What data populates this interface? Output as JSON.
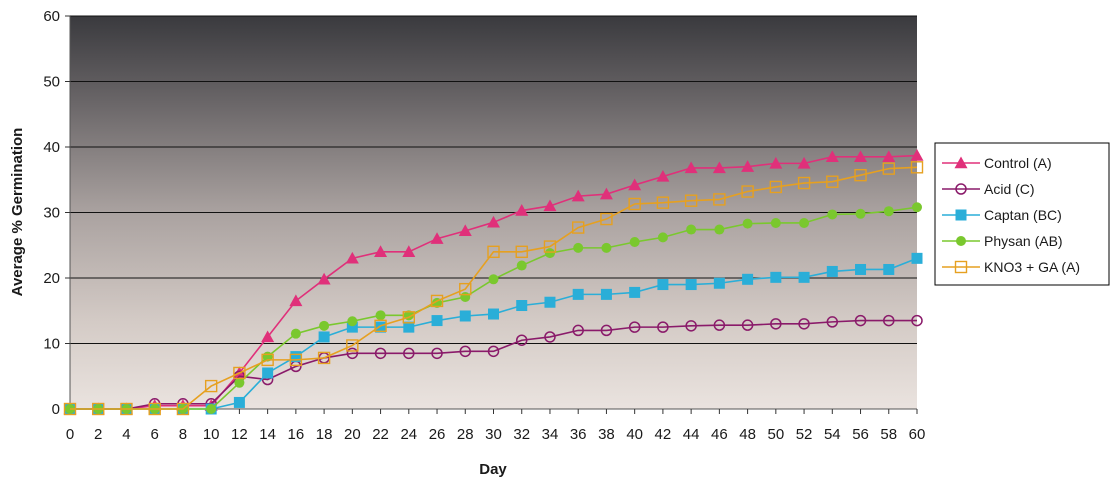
{
  "chart_data": {
    "type": "line",
    "title": "",
    "xlabel": "Day",
    "ylabel": "Average % Germination",
    "xlim": [
      0,
      60
    ],
    "ylim": [
      0,
      60
    ],
    "x_ticks": [
      0,
      2,
      4,
      6,
      8,
      10,
      12,
      14,
      16,
      18,
      20,
      22,
      24,
      26,
      28,
      30,
      32,
      34,
      36,
      38,
      40,
      42,
      44,
      46,
      48,
      50,
      52,
      54,
      56,
      58,
      60
    ],
    "y_ticks": [
      0,
      10,
      20,
      30,
      40,
      50,
      60
    ],
    "grid": "horizontal",
    "legend_position": "right",
    "x": [
      0,
      2,
      4,
      6,
      8,
      10,
      12,
      14,
      16,
      18,
      20,
      22,
      24,
      26,
      28,
      30,
      32,
      34,
      36,
      38,
      40,
      42,
      44,
      46,
      48,
      50,
      52,
      54,
      56,
      58,
      60
    ],
    "series": [
      {
        "name": "Control (A)",
        "color": "#e0307a",
        "marker": "triangle",
        "values": [
          0,
          0,
          0,
          0.5,
          0.5,
          0.5,
          5.5,
          11,
          16.5,
          19.8,
          23,
          24,
          24,
          26,
          27.2,
          28.5,
          30.3,
          31,
          32.5,
          32.8,
          34.2,
          35.5,
          36.8,
          36.8,
          37,
          37.5,
          37.5,
          38.5,
          38.5,
          38.5,
          38.7
        ]
      },
      {
        "name": "Acid (C)",
        "color": "#8a1a6a",
        "marker": "circle-open",
        "values": [
          0,
          0,
          0,
          0.8,
          0.8,
          0.8,
          5,
          4.5,
          6.5,
          7.8,
          8.5,
          8.5,
          8.5,
          8.5,
          8.8,
          8.8,
          10.5,
          11,
          12,
          12,
          12.5,
          12.5,
          12.7,
          12.8,
          12.8,
          13,
          13,
          13.3,
          13.5,
          13.5,
          13.5
        ]
      },
      {
        "name": "Captan (BC)",
        "color": "#2aaed8",
        "marker": "square",
        "values": [
          0,
          0,
          0,
          0,
          0,
          0,
          1,
          5.5,
          8,
          11,
          12.5,
          12.5,
          12.5,
          13.5,
          14.2,
          14.5,
          15.8,
          16.3,
          17.5,
          17.5,
          17.8,
          19,
          19,
          19.2,
          19.8,
          20.1,
          20.1,
          21,
          21.3,
          21.3,
          23
        ]
      },
      {
        "name": "Physan (AB)",
        "color": "#7ac82e",
        "marker": "circle-filled",
        "values": [
          0,
          0,
          0,
          0,
          0,
          0,
          4,
          8,
          11.5,
          12.7,
          13.4,
          14.3,
          14.3,
          16.2,
          17.1,
          19.8,
          21.9,
          23.8,
          24.6,
          24.6,
          25.5,
          26.2,
          27.4,
          27.4,
          28.3,
          28.4,
          28.4,
          29.7,
          29.8,
          30.2,
          30.8
        ]
      },
      {
        "name": "KNO3 + GA (A)",
        "color": "#e6a020",
        "marker": "square-open",
        "values": [
          0,
          0,
          0,
          0,
          0,
          3.5,
          5.5,
          7.5,
          7.5,
          7.8,
          9.7,
          12.7,
          14,
          16.5,
          18.3,
          24,
          24,
          24.8,
          27.7,
          29,
          31.3,
          31.5,
          31.8,
          32,
          33.2,
          33.9,
          34.5,
          34.7,
          35.7,
          36.7,
          36.9
        ]
      }
    ]
  }
}
